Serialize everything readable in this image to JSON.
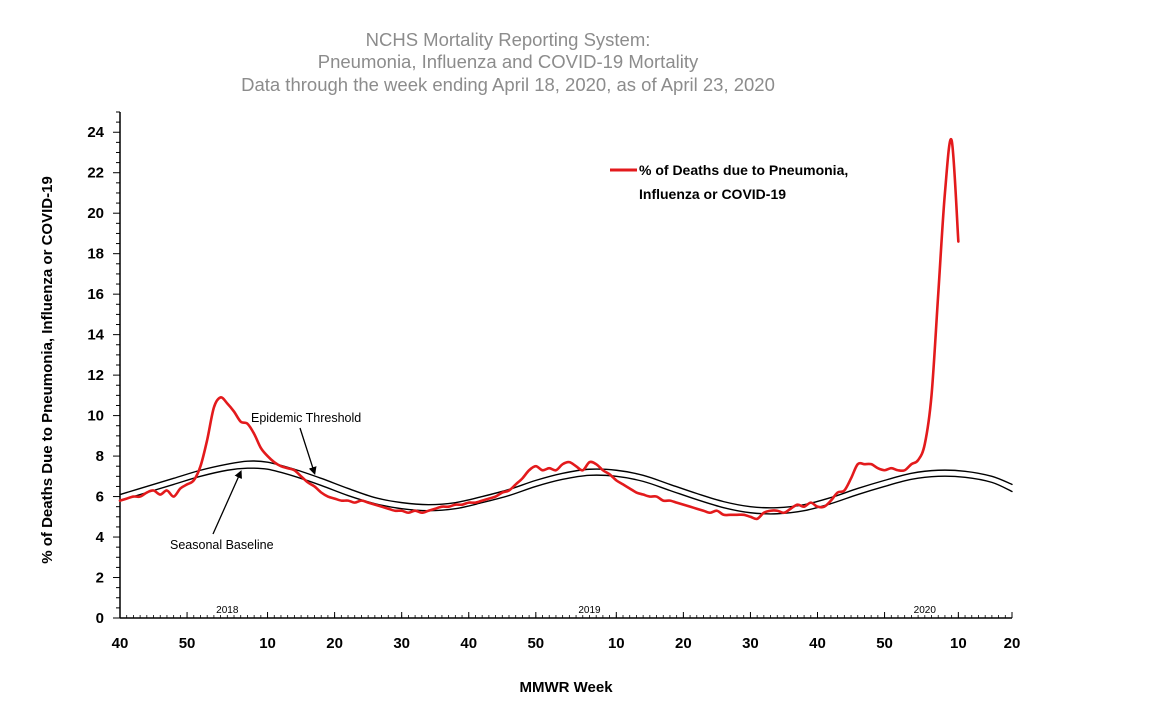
{
  "chart_data": {
    "type": "line",
    "title": [
      "NCHS Mortality Reporting System:",
      "Pneumonia, Influenza and COVID-19 Mortality",
      "Data through the week ending April 18, 2020, as of April 23, 2020"
    ],
    "xlabel": "MMWR Week",
    "ylabel": "% of Deaths Due to Pneumonia, Influenza or  COVID-19",
    "ylim": [
      0,
      25
    ],
    "yticks": [
      0,
      2,
      4,
      6,
      8,
      10,
      12,
      14,
      16,
      18,
      20,
      22,
      24
    ],
    "x_unit": "weeks since MMWR week 40 of 2017",
    "xlim": [
      0,
      133
    ],
    "xticks": [
      {
        "x": 0,
        "label": "40"
      },
      {
        "x": 10,
        "label": "50"
      },
      {
        "x": 22,
        "label": "10"
      },
      {
        "x": 32,
        "label": "20"
      },
      {
        "x": 42,
        "label": "30"
      },
      {
        "x": 52,
        "label": "40"
      },
      {
        "x": 62,
        "label": "50"
      },
      {
        "x": 74,
        "label": "10"
      },
      {
        "x": 84,
        "label": "20"
      },
      {
        "x": 94,
        "label": "30"
      },
      {
        "x": 104,
        "label": "40"
      },
      {
        "x": 114,
        "label": "50"
      },
      {
        "x": 125,
        "label": "10"
      },
      {
        "x": 133,
        "label": "20"
      }
    ],
    "year_labels": [
      {
        "x": 16,
        "label": "2018"
      },
      {
        "x": 70,
        "label": "2019"
      },
      {
        "x": 120,
        "label": "2020"
      }
    ],
    "series": [
      {
        "name": "% of Deaths due to Pneumonia, Influenza or COVID-19",
        "color": "#e31a1c",
        "points": [
          [
            0,
            5.8
          ],
          [
            1,
            5.9
          ],
          [
            2,
            6.0
          ],
          [
            3,
            6.0
          ],
          [
            4,
            6.2
          ],
          [
            5,
            6.3
          ],
          [
            6,
            6.1
          ],
          [
            7,
            6.3
          ],
          [
            8,
            6.0
          ],
          [
            9,
            6.4
          ],
          [
            10,
            6.6
          ],
          [
            11,
            6.8
          ],
          [
            12,
            7.5
          ],
          [
            13,
            8.8
          ],
          [
            14,
            10.4
          ],
          [
            15,
            10.9
          ],
          [
            16,
            10.6
          ],
          [
            17,
            10.2
          ],
          [
            18,
            9.7
          ],
          [
            19,
            9.6
          ],
          [
            20,
            9.1
          ],
          [
            21,
            8.4
          ],
          [
            22,
            8.0
          ],
          [
            23,
            7.7
          ],
          [
            24,
            7.5
          ],
          [
            25,
            7.4
          ],
          [
            26,
            7.3
          ],
          [
            27,
            7.0
          ],
          [
            28,
            6.7
          ],
          [
            29,
            6.5
          ],
          [
            30,
            6.2
          ],
          [
            31,
            6.0
          ],
          [
            32,
            5.9
          ],
          [
            33,
            5.8
          ],
          [
            34,
            5.8
          ],
          [
            35,
            5.7
          ],
          [
            36,
            5.8
          ],
          [
            37,
            5.7
          ],
          [
            38,
            5.6
          ],
          [
            39,
            5.5
          ],
          [
            40,
            5.4
          ],
          [
            41,
            5.3
          ],
          [
            42,
            5.3
          ],
          [
            43,
            5.2
          ],
          [
            44,
            5.3
          ],
          [
            45,
            5.2
          ],
          [
            46,
            5.3
          ],
          [
            47,
            5.4
          ],
          [
            48,
            5.5
          ],
          [
            49,
            5.5
          ],
          [
            50,
            5.6
          ],
          [
            51,
            5.6
          ],
          [
            52,
            5.7
          ],
          [
            53,
            5.7
          ],
          [
            54,
            5.8
          ],
          [
            55,
            5.9
          ],
          [
            56,
            6.0
          ],
          [
            57,
            6.2
          ],
          [
            58,
            6.3
          ],
          [
            59,
            6.6
          ],
          [
            60,
            6.9
          ],
          [
            61,
            7.3
          ],
          [
            62,
            7.5
          ],
          [
            63,
            7.3
          ],
          [
            64,
            7.4
          ],
          [
            65,
            7.3
          ],
          [
            66,
            7.6
          ],
          [
            67,
            7.7
          ],
          [
            68,
            7.5
          ],
          [
            69,
            7.3
          ],
          [
            70,
            7.7
          ],
          [
            71,
            7.6
          ],
          [
            72,
            7.3
          ],
          [
            73,
            7.1
          ],
          [
            74,
            6.8
          ],
          [
            75,
            6.6
          ],
          [
            76,
            6.4
          ],
          [
            77,
            6.2
          ],
          [
            78,
            6.1
          ],
          [
            79,
            6.0
          ],
          [
            80,
            6.0
          ],
          [
            81,
            5.8
          ],
          [
            82,
            5.8
          ],
          [
            83,
            5.7
          ],
          [
            84,
            5.6
          ],
          [
            85,
            5.5
          ],
          [
            86,
            5.4
          ],
          [
            87,
            5.3
          ],
          [
            88,
            5.2
          ],
          [
            89,
            5.3
          ],
          [
            90,
            5.1
          ],
          [
            91,
            5.1
          ],
          [
            92,
            5.1
          ],
          [
            93,
            5.1
          ],
          [
            94,
            5.0
          ],
          [
            95,
            4.9
          ],
          [
            96,
            5.2
          ],
          [
            97,
            5.3
          ],
          [
            98,
            5.3
          ],
          [
            99,
            5.2
          ],
          [
            100,
            5.4
          ],
          [
            101,
            5.6
          ],
          [
            102,
            5.5
          ],
          [
            103,
            5.7
          ],
          [
            104,
            5.5
          ],
          [
            105,
            5.5
          ],
          [
            106,
            5.8
          ],
          [
            107,
            6.2
          ],
          [
            108,
            6.3
          ],
          [
            109,
            6.9
          ],
          [
            110,
            7.6
          ],
          [
            111,
            7.6
          ],
          [
            112,
            7.6
          ],
          [
            113,
            7.4
          ],
          [
            114,
            7.3
          ],
          [
            115,
            7.4
          ],
          [
            116,
            7.3
          ],
          [
            117,
            7.3
          ],
          [
            118,
            7.6
          ],
          [
            119,
            7.8
          ],
          [
            120,
            8.6
          ],
          [
            121,
            11.0
          ],
          [
            122,
            16.0
          ],
          [
            123,
            21.0
          ],
          [
            124,
            23.6
          ],
          [
            125,
            18.6
          ]
        ]
      },
      {
        "name": "Epidemic Threshold",
        "color": "#000000",
        "points": [
          [
            0,
            6.1
          ],
          [
            4,
            6.5
          ],
          [
            8,
            6.9
          ],
          [
            12,
            7.3
          ],
          [
            16,
            7.6
          ],
          [
            19,
            7.75
          ],
          [
            22,
            7.7
          ],
          [
            26,
            7.35
          ],
          [
            30,
            6.9
          ],
          [
            34,
            6.4
          ],
          [
            38,
            5.95
          ],
          [
            42,
            5.7
          ],
          [
            46,
            5.6
          ],
          [
            50,
            5.7
          ],
          [
            54,
            6.0
          ],
          [
            58,
            6.35
          ],
          [
            62,
            6.8
          ],
          [
            66,
            7.15
          ],
          [
            70,
            7.35
          ],
          [
            74,
            7.3
          ],
          [
            78,
            7.05
          ],
          [
            82,
            6.6
          ],
          [
            86,
            6.15
          ],
          [
            90,
            5.75
          ],
          [
            94,
            5.5
          ],
          [
            98,
            5.45
          ],
          [
            102,
            5.6
          ],
          [
            106,
            5.95
          ],
          [
            110,
            6.4
          ],
          [
            114,
            6.8
          ],
          [
            118,
            7.15
          ],
          [
            122,
            7.3
          ],
          [
            126,
            7.25
          ],
          [
            130,
            7.0
          ],
          [
            133,
            6.6
          ]
        ]
      },
      {
        "name": "Seasonal Baseline",
        "color": "#000000",
        "points": [
          [
            0,
            5.8
          ],
          [
            4,
            6.2
          ],
          [
            8,
            6.6
          ],
          [
            12,
            7.0
          ],
          [
            16,
            7.3
          ],
          [
            19,
            7.4
          ],
          [
            22,
            7.35
          ],
          [
            26,
            7.0
          ],
          [
            30,
            6.55
          ],
          [
            34,
            6.05
          ],
          [
            38,
            5.65
          ],
          [
            42,
            5.4
          ],
          [
            46,
            5.3
          ],
          [
            50,
            5.4
          ],
          [
            54,
            5.7
          ],
          [
            58,
            6.05
          ],
          [
            62,
            6.5
          ],
          [
            66,
            6.85
          ],
          [
            70,
            7.05
          ],
          [
            74,
            7.0
          ],
          [
            78,
            6.75
          ],
          [
            82,
            6.3
          ],
          [
            86,
            5.85
          ],
          [
            90,
            5.45
          ],
          [
            94,
            5.2
          ],
          [
            98,
            5.15
          ],
          [
            102,
            5.3
          ],
          [
            106,
            5.65
          ],
          [
            110,
            6.1
          ],
          [
            114,
            6.5
          ],
          [
            118,
            6.85
          ],
          [
            122,
            7.0
          ],
          [
            126,
            6.95
          ],
          [
            130,
            6.7
          ],
          [
            133,
            6.25
          ]
        ]
      }
    ],
    "legend": {
      "label_line1": "% of Deaths due to Pneumonia,",
      "label_line2": "Influenza or COVID-19",
      "placement": "top-right"
    },
    "annotations": [
      {
        "text": "Epidemic Threshold",
        "points_to_x": 29,
        "points_to_series": "Epidemic Threshold"
      },
      {
        "text": "Seasonal Baseline",
        "points_to_x": 18,
        "points_to_series": "Seasonal Baseline"
      }
    ]
  }
}
